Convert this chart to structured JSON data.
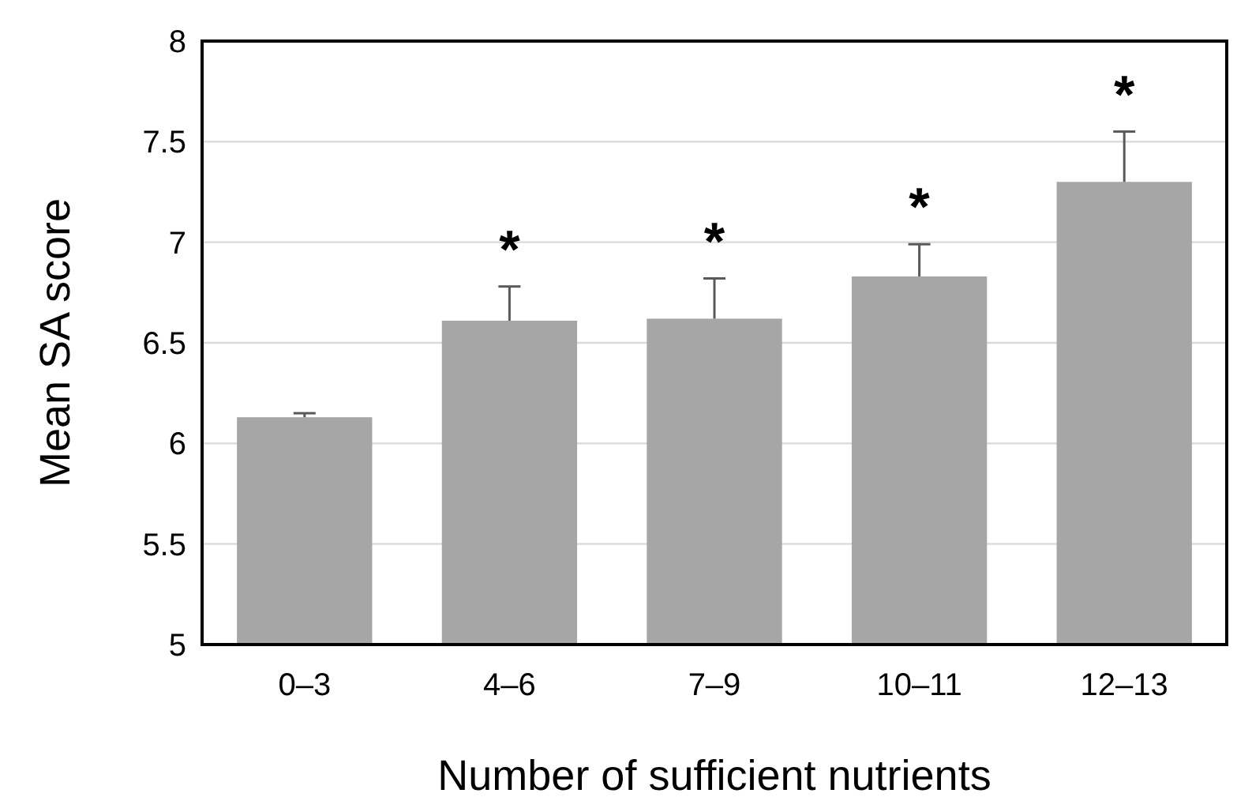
{
  "chart_data": {
    "type": "bar",
    "xlabel": "Number of sufficient nutrients",
    "ylabel": "Mean SA score",
    "categories": [
      "0–3",
      "4–6",
      "7–9",
      "10–11",
      "12–13"
    ],
    "values": [
      6.13,
      6.61,
      6.62,
      6.83,
      7.3
    ],
    "errors": [
      [
        6.13,
        6.15
      ],
      [
        6.61,
        6.78
      ],
      [
        6.62,
        6.82
      ],
      [
        6.83,
        6.99
      ],
      [
        7.3,
        7.55
      ]
    ],
    "color": "#a6a6a6",
    "ylim": [
      5,
      8
    ],
    "yticks": [
      5,
      5.5,
      6,
      6.5,
      7,
      7.5,
      8
    ],
    "grid": "y",
    "annotations": [
      "*",
      "*",
      "*",
      "*"
    ]
  }
}
